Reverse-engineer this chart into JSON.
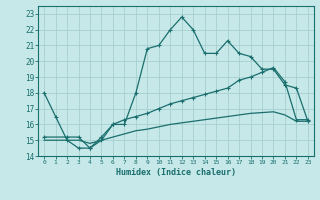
{
  "title": "",
  "xlabel": "Humidex (Indice chaleur)",
  "bg_color": "#c6e8e8",
  "grid_color": "#a8d0d0",
  "line_color": "#1a6e6e",
  "xlim": [
    -0.5,
    23.5
  ],
  "ylim": [
    14,
    23.5
  ],
  "yticks": [
    14,
    15,
    16,
    17,
    18,
    19,
    20,
    21,
    22,
    23
  ],
  "xticks": [
    0,
    1,
    2,
    3,
    4,
    5,
    6,
    7,
    8,
    9,
    10,
    11,
    12,
    13,
    14,
    15,
    16,
    17,
    18,
    19,
    20,
    21,
    22,
    23
  ],
  "line1_x": [
    0,
    1,
    2,
    3,
    4,
    5,
    6,
    7,
    8,
    9,
    10,
    11,
    12,
    13,
    14,
    15,
    16,
    17,
    18,
    19,
    20,
    21,
    22,
    23
  ],
  "line1_y": [
    18,
    16.5,
    15,
    14.5,
    14.5,
    15.0,
    16.0,
    16.0,
    18.0,
    20.8,
    21.0,
    22.0,
    22.8,
    22.0,
    20.5,
    20.5,
    21.3,
    20.5,
    20.3,
    19.5,
    19.5,
    18.5,
    18.3,
    16.2
  ],
  "line2_x": [
    0,
    2,
    3,
    4,
    5,
    6,
    7,
    8,
    9,
    10,
    11,
    12,
    13,
    14,
    15,
    16,
    17,
    18,
    19,
    20,
    21,
    22,
    23
  ],
  "line2_y": [
    15.2,
    15.2,
    15.2,
    14.5,
    15.2,
    16.0,
    16.3,
    16.5,
    16.7,
    17.0,
    17.3,
    17.5,
    17.7,
    17.9,
    18.1,
    18.3,
    18.8,
    19.0,
    19.3,
    19.6,
    18.7,
    16.3,
    16.3
  ],
  "line3_x": [
    0,
    2,
    3,
    4,
    5,
    6,
    7,
    8,
    9,
    10,
    11,
    12,
    13,
    14,
    15,
    16,
    17,
    18,
    19,
    20,
    21,
    22,
    23
  ],
  "line3_y": [
    15.0,
    15.0,
    15.0,
    14.8,
    15.0,
    15.2,
    15.4,
    15.6,
    15.7,
    15.85,
    16.0,
    16.1,
    16.2,
    16.3,
    16.4,
    16.5,
    16.6,
    16.7,
    16.75,
    16.8,
    16.6,
    16.2,
    16.2
  ]
}
